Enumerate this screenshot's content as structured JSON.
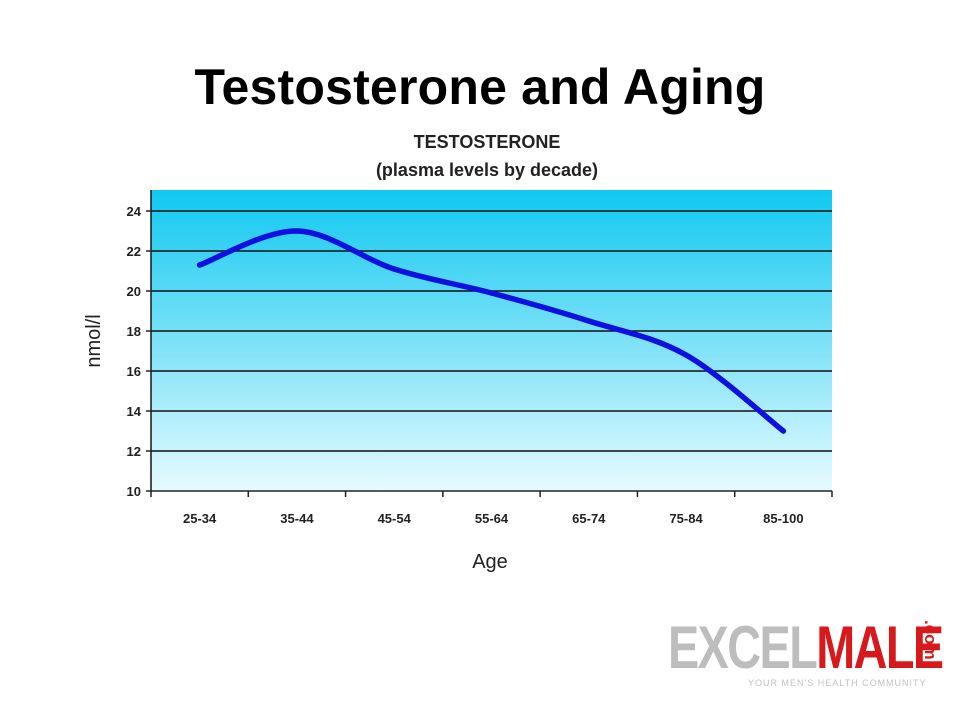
{
  "slide": {
    "title": "Testosterone and Aging"
  },
  "chart_data": {
    "type": "line",
    "title": "TESTOSTERONE",
    "subtitle": "(plasma levels by decade)",
    "xlabel": "Age",
    "ylabel": "nmol/l",
    "categories": [
      "25-34",
      "35-44",
      "45-54",
      "55-64",
      "65-74",
      "75-84",
      "85-100"
    ],
    "series": [
      {
        "values": [
          21.3,
          23.0,
          21.1,
          19.9,
          18.5,
          16.8,
          13.0
        ]
      }
    ],
    "ylim": [
      10,
      24
    ],
    "yticks": [
      10,
      12,
      14,
      16,
      18,
      20,
      22,
      24
    ],
    "grid": true,
    "legend": "none",
    "colors": {
      "line": "#1010e0",
      "plot_top": "#10c8f0",
      "plot_bottom": "#e6fbff",
      "grid": "#111111"
    }
  },
  "logo": {
    "excel": "EXCEL",
    "male": "MALE",
    "com": ".com",
    "tagline": "YOUR MEN'S HEALTH COMMUNITY"
  }
}
